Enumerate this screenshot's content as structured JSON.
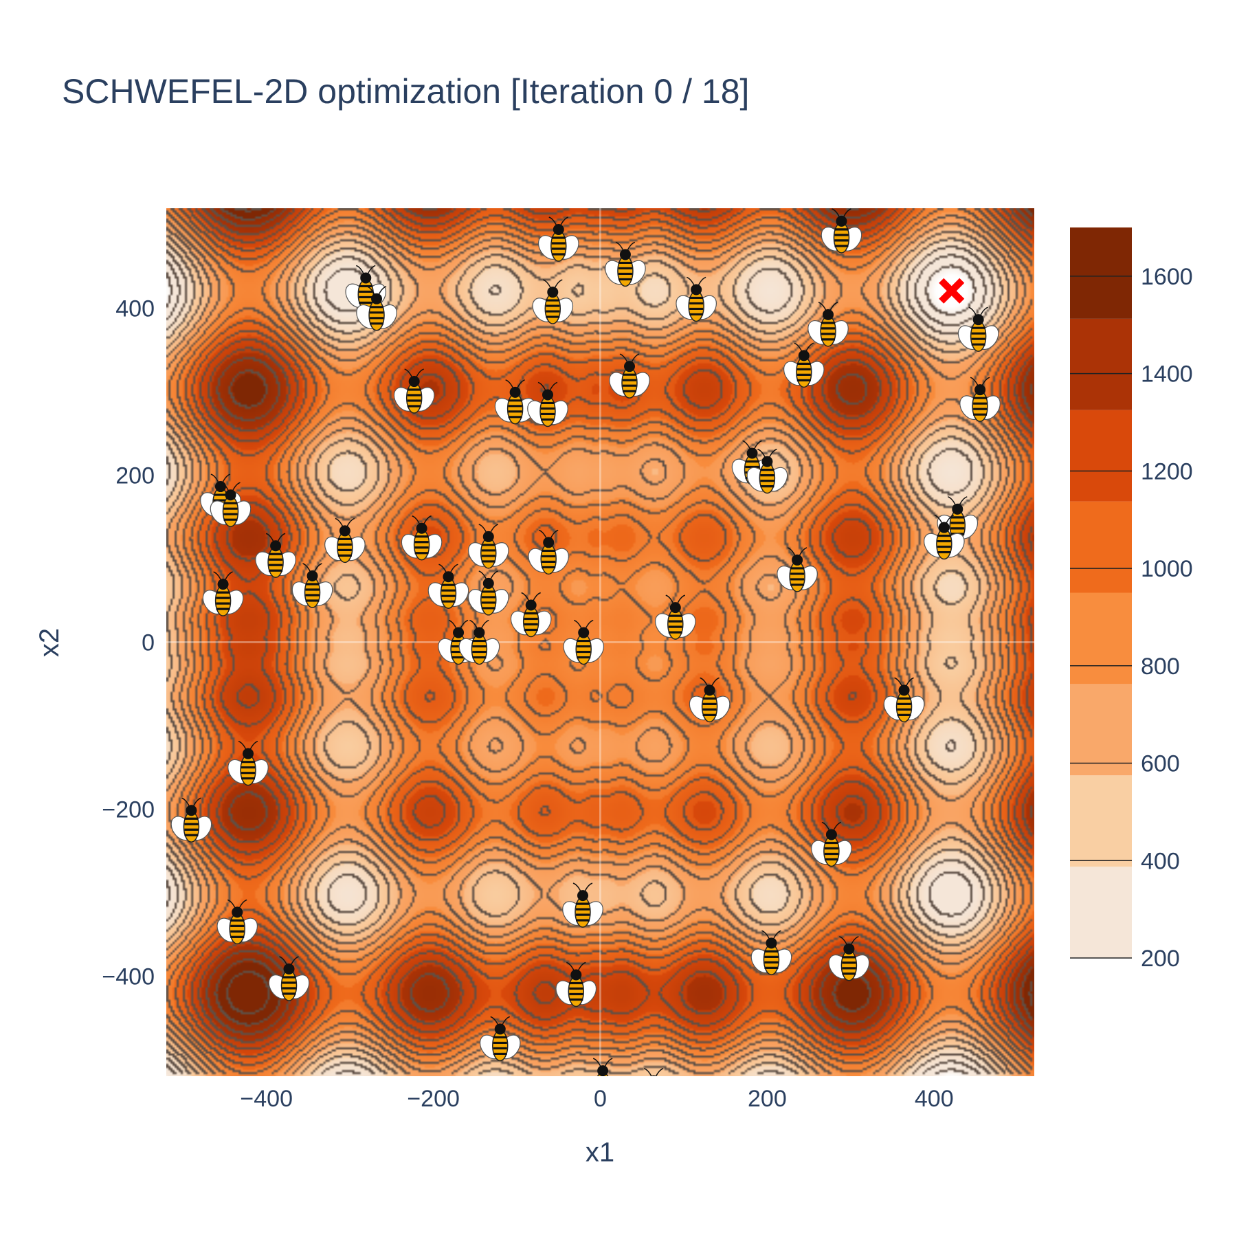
{
  "chart_data": {
    "type": "contour",
    "title": "SCHWEFEL-2D optimization [Iteration 0 / 18]",
    "xlabel": "x1",
    "ylabel": "x2",
    "xlim": [
      -520,
      520
    ],
    "ylim": [
      -520,
      520
    ],
    "x_ticks": [
      -400,
      -200,
      0,
      200,
      400
    ],
    "y_ticks": [
      -400,
      -200,
      0,
      200,
      400
    ],
    "x_tick_labels": [
      "−400",
      "−200",
      "0",
      "200",
      "400"
    ],
    "y_tick_labels": [
      "−400",
      "−200",
      "0",
      "200",
      "400"
    ],
    "colorbar": {
      "range": [
        200,
        1700
      ],
      "ticks": [
        200,
        400,
        600,
        800,
        1000,
        1200,
        1400,
        1600
      ],
      "tick_labels": [
        "200",
        "400",
        "600",
        "800",
        "1000",
        "1200",
        "1400",
        "1600"
      ],
      "colors": [
        "#f5e6d8",
        "#f9cfa3",
        "#f9a86a",
        "#f88d3e",
        "#ef6b1c",
        "#d9490b",
        "#ab3306",
        "#7f2704"
      ]
    },
    "function": "schwefel-2d",
    "contour_levels_step": 100,
    "markers": {
      "best": {
        "name": "best",
        "x": 420.97,
        "y": 420.97,
        "symbol": "x",
        "color": "#ff0000"
      },
      "particles": [
        {
          "x": -50,
          "y": 478
        },
        {
          "x": 30,
          "y": 448
        },
        {
          "x": 289,
          "y": 488
        },
        {
          "x": -281,
          "y": 420
        },
        {
          "x": -268,
          "y": 395
        },
        {
          "x": -57,
          "y": 403
        },
        {
          "x": 115,
          "y": 406
        },
        {
          "x": 273,
          "y": 376
        },
        {
          "x": 453,
          "y": 370
        },
        {
          "x": 244,
          "y": 327
        },
        {
          "x": 35,
          "y": 314
        },
        {
          "x": -223,
          "y": 296
        },
        {
          "x": -102,
          "y": 283
        },
        {
          "x": -63,
          "y": 280
        },
        {
          "x": 455,
          "y": 286
        },
        {
          "x": 182,
          "y": 210
        },
        {
          "x": 200,
          "y": 200
        },
        {
          "x": -455,
          "y": 170
        },
        {
          "x": -443,
          "y": 160
        },
        {
          "x": 428,
          "y": 143
        },
        {
          "x": 412,
          "y": 121
        },
        {
          "x": -306,
          "y": 117
        },
        {
          "x": -214,
          "y": 120
        },
        {
          "x": -134,
          "y": 110
        },
        {
          "x": -62,
          "y": 103
        },
        {
          "x": -389,
          "y": 99
        },
        {
          "x": 236,
          "y": 82
        },
        {
          "x": -182,
          "y": 62
        },
        {
          "x": -134,
          "y": 54
        },
        {
          "x": -452,
          "y": 53
        },
        {
          "x": -345,
          "y": 63
        },
        {
          "x": -83,
          "y": 28
        },
        {
          "x": 90,
          "y": 25
        },
        {
          "x": -170,
          "y": -5
        },
        {
          "x": -145,
          "y": -5
        },
        {
          "x": -20,
          "y": -5
        },
        {
          "x": 131,
          "y": -74
        },
        {
          "x": 364,
          "y": -74
        },
        {
          "x": -422,
          "y": -150
        },
        {
          "x": -490,
          "y": -218
        },
        {
          "x": 277,
          "y": -247
        },
        {
          "x": -435,
          "y": -340
        },
        {
          "x": -21,
          "y": -320
        },
        {
          "x": 205,
          "y": -377
        },
        {
          "x": 298,
          "y": -384
        },
        {
          "x": -373,
          "y": -408
        },
        {
          "x": -29,
          "y": -415
        },
        {
          "x": -120,
          "y": -480
        },
        {
          "x": 3,
          "y": -530
        },
        {
          "x": 64,
          "y": -542
        }
      ]
    }
  }
}
